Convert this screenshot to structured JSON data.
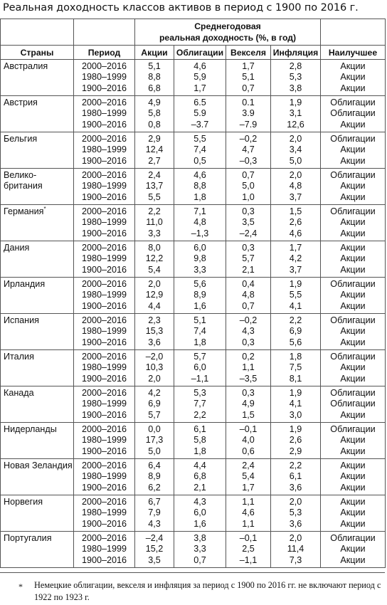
{
  "title": "Реальная доходность классов активов в период с 1900 по 2016 г.",
  "header": {
    "group_label": "Среднегодовая реальная доходность (%, в год)",
    "group_line1": "Среднегодовая",
    "group_line2": "реальная доходность (%, в год)",
    "col_country": "Страны",
    "col_period": "Период",
    "col_stocks": "Акции",
    "col_bonds": "Облигации",
    "col_bills": "Векселя",
    "col_inflation": "Инфляция",
    "col_best": "Наилучшее"
  },
  "rows": [
    {
      "country": [
        "Австралия"
      ],
      "periods": [
        "2000–2016",
        "1980–1999",
        "1900–2016"
      ],
      "stocks": [
        "5,1",
        "8,8",
        "6,8"
      ],
      "bonds": [
        "4,6",
        "5,9",
        "1,7"
      ],
      "bills": [
        "1,7",
        "5,1",
        "0,7"
      ],
      "inflation": [
        "2,8",
        "5,3",
        "3,8"
      ],
      "best": [
        "Акции",
        "Акции",
        "Акции"
      ]
    },
    {
      "country": [
        "Австрия"
      ],
      "periods": [
        "2000–2016",
        "1980–1999",
        "1900–2016"
      ],
      "stocks": [
        "4,9",
        "5,8",
        "0,8"
      ],
      "bonds": [
        "6.5",
        "5.9",
        "–3.7"
      ],
      "bills": [
        "0.1",
        "3.9",
        "–7.9"
      ],
      "inflation": [
        "1,9",
        "3,1",
        "12,6"
      ],
      "best": [
        "Облигации",
        "Облигации",
        "Акции"
      ]
    },
    {
      "country": [
        "Бельгия"
      ],
      "periods": [
        "2000–2016",
        "1980–1999",
        "1900–2016"
      ],
      "stocks": [
        "2,9",
        "12,4",
        "2,7"
      ],
      "bonds": [
        "5,5",
        "7,4",
        "0,5"
      ],
      "bills": [
        "–0,2",
        "4,7",
        "–0,3"
      ],
      "inflation": [
        "2,0",
        "3,4",
        "5,0"
      ],
      "best": [
        "Облигации",
        "Акции",
        "Акции"
      ]
    },
    {
      "country": [
        "Велико-",
        "британия"
      ],
      "periods": [
        "2000–2016",
        "1980–1999",
        "1900–2016"
      ],
      "stocks": [
        "2,4",
        "13,7",
        "5,5"
      ],
      "bonds": [
        "4,6",
        "8,8",
        "1,8"
      ],
      "bills": [
        "0,7",
        "5,0",
        "1,0"
      ],
      "inflation": [
        "2,0",
        "4,8",
        "3,7"
      ],
      "best": [
        "Облигации",
        "Акции",
        "Акции"
      ]
    },
    {
      "country": [
        "Германия"
      ],
      "sup": "*",
      "periods": [
        "2000–2016",
        "1980–1999",
        "1900–2016"
      ],
      "stocks": [
        "2,2",
        "11,0",
        "3,3"
      ],
      "bonds": [
        "7,1",
        "4,8",
        "–1,3"
      ],
      "bills": [
        "0,3",
        "3,5",
        "–2,4"
      ],
      "inflation": [
        "1,5",
        "2,6",
        "4,6"
      ],
      "best": [
        "Облигации",
        "Акции",
        "Акции"
      ]
    },
    {
      "country": [
        "Дания"
      ],
      "periods": [
        "2000–2016",
        "1980–1999",
        "1900–2016"
      ],
      "stocks": [
        "8,0",
        "12,2",
        "5,4"
      ],
      "bonds": [
        "6,0",
        "9,8",
        "3,3"
      ],
      "bills": [
        "0,3",
        "5,7",
        "2,1"
      ],
      "inflation": [
        "1,7",
        "4,2",
        "3,7"
      ],
      "best": [
        "Акции",
        "Акции",
        "Акции"
      ]
    },
    {
      "country": [
        "Ирландия"
      ],
      "periods": [
        "2000–2016",
        "1980–1999",
        "1900–2016"
      ],
      "stocks": [
        "2,0",
        "12,9",
        "4,4"
      ],
      "bonds": [
        "5,6",
        "8,9",
        "1,6"
      ],
      "bills": [
        "0,4",
        "4,8",
        "0,7"
      ],
      "inflation": [
        "1,9",
        "5,5",
        "4,1"
      ],
      "best": [
        "Облигации",
        "Акции",
        "Акции"
      ]
    },
    {
      "country": [
        "Испания"
      ],
      "periods": [
        "2000–2016",
        "1980–1999",
        "1900–2016"
      ],
      "stocks": [
        "2,3",
        "15,3",
        "3,6"
      ],
      "bonds": [
        "5,1",
        "7,4",
        "1,8"
      ],
      "bills": [
        "–0,2",
        "4,3",
        "0,3"
      ],
      "inflation": [
        "2,2",
        "6,9",
        "5,6"
      ],
      "best": [
        "Облигации",
        "Акции",
        "Акции"
      ]
    },
    {
      "country": [
        "Италия"
      ],
      "periods": [
        "2000–2016",
        "1980–1999",
        "1900–2016"
      ],
      "stocks": [
        "–2,0",
        "10,3",
        "2,0"
      ],
      "bonds": [
        "5,7",
        "6,0",
        "–1,1"
      ],
      "bills": [
        "0,2",
        "1,1",
        "–3,5"
      ],
      "inflation": [
        "1,8",
        "7,5",
        "8,1"
      ],
      "best": [
        "Облигации",
        "Акции",
        "Акции"
      ]
    },
    {
      "country": [
        "Канада"
      ],
      "periods": [
        "2000–2016",
        "1980–1999",
        "1900–2016"
      ],
      "stocks": [
        "4,2",
        "6,9",
        "5,7"
      ],
      "bonds": [
        "5,3",
        "7,7",
        "2,2"
      ],
      "bills": [
        "0,3",
        "4,9",
        "1,5"
      ],
      "inflation": [
        "1,9",
        "4,1",
        "3,0"
      ],
      "best": [
        "Облигации",
        "Облигации",
        "Акции"
      ]
    },
    {
      "country": [
        "Нидерланды"
      ],
      "periods": [
        "2000–2016",
        "1980–1999",
        "1900–2016"
      ],
      "stocks": [
        "0,0",
        "17,3",
        "5,0"
      ],
      "bonds": [
        "6,1",
        "5,8",
        "1,8"
      ],
      "bills": [
        "–0,1",
        "4,0",
        "0,6"
      ],
      "inflation": [
        "1,9",
        "2,6",
        "2,9"
      ],
      "best": [
        "Облигации",
        "Акции",
        "Акции"
      ]
    },
    {
      "country": [
        "Новая Зеландия"
      ],
      "periods": [
        "2000–2016",
        "1980–1999",
        "1900–2016"
      ],
      "stocks": [
        "6,4",
        "8,9",
        "6,2"
      ],
      "bonds": [
        "4,4",
        "6,8",
        "2,1"
      ],
      "bills": [
        "2,4",
        "5,4",
        "1,7"
      ],
      "inflation": [
        "2,2",
        "6,1",
        "3,6"
      ],
      "best": [
        "Акции",
        "Акции",
        "Акции"
      ]
    },
    {
      "country": [
        "Норвегия"
      ],
      "periods": [
        "2000–2016",
        "1980–1999",
        "1900–2016"
      ],
      "stocks": [
        "6,7",
        "7,9",
        "4,3"
      ],
      "bonds": [
        "4,3",
        "6,0",
        "1,6"
      ],
      "bills": [
        "1,1",
        "4,6",
        "1,1"
      ],
      "inflation": [
        "2,0",
        "5,3",
        "3,6"
      ],
      "best": [
        "Акции",
        "Акции",
        "Акции"
      ]
    },
    {
      "country": [
        "Португалия"
      ],
      "periods": [
        "2000–2016",
        "1980–1999",
        "1900–2016"
      ],
      "stocks": [
        "–2,4",
        "15,2",
        "3,5"
      ],
      "bonds": [
        "3,8",
        "3,3",
        "0,7"
      ],
      "bills": [
        "–0,1",
        "2,5",
        "–1,1"
      ],
      "inflation": [
        "2,0",
        "11,4",
        "7,3"
      ],
      "best": [
        "Облигации",
        "Акции",
        "Акции"
      ]
    }
  ],
  "footnote": {
    "mark": "*",
    "text": "Немецкие облигации, векселя и инфляция за период с 1900 по 2016 гг. не включают период с 1922 по 1923 г."
  }
}
